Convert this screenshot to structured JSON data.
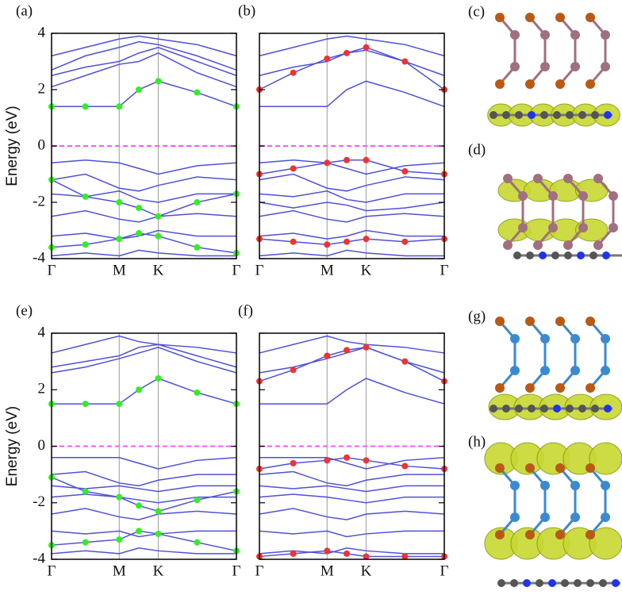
{
  "chart_data": [
    {
      "type": "line",
      "label": "(a)",
      "y_label": "Energy (eV)",
      "show_ytick_labels": true,
      "x": [
        0,
        0.5,
        1,
        1.29,
        1.577,
        2.15,
        2.732
      ],
      "xlim": [
        0,
        2.732
      ],
      "xticks": [
        {
          "value": 0,
          "label": "Γ"
        },
        {
          "value": 1,
          "label": "M"
        },
        {
          "value": 1.577,
          "label": "K"
        },
        {
          "value": 2.732,
          "label": "Γ"
        }
      ],
      "ylim": [
        -4,
        4
      ],
      "yticks": [
        4,
        2,
        0,
        -2,
        -4
      ],
      "hlines": [
        {
          "value": 0,
          "color": "#ff55ff",
          "style": "dashed"
        }
      ],
      "series": [
        {
          "color": "#5050d8",
          "values": [
            2.1,
            2.5,
            2.9,
            3.0,
            3.3,
            2.6,
            2.1
          ]
        },
        {
          "color": "#5050d8",
          "values": [
            2.5,
            2.8,
            3.0,
            3.3,
            3.5,
            3.0,
            2.5
          ]
        },
        {
          "color": "#5050d8",
          "values": [
            2.7,
            3.2,
            3.5,
            3.7,
            3.6,
            3.2,
            2.7
          ]
        },
        {
          "color": "#5050d8",
          "values": [
            3.2,
            3.5,
            3.8,
            3.9,
            3.8,
            3.6,
            3.2
          ]
        },
        {
          "color": "#5050d8",
          "values": [
            -0.6,
            -0.5,
            -0.6,
            -0.8,
            -1.0,
            -0.7,
            -0.6
          ]
        },
        {
          "color": "#5050d8",
          "values": [
            -1.2,
            -1.0,
            -1.5,
            -1.6,
            -1.4,
            -1.1,
            -1.2
          ]
        },
        {
          "color": "#5050d8",
          "values": [
            -1.7,
            -1.8,
            -1.6,
            -1.9,
            -2.0,
            -1.7,
            -1.7
          ]
        },
        {
          "color": "#5050d8",
          "values": [
            -2.5,
            -2.3,
            -2.6,
            -2.7,
            -2.5,
            -2.4,
            -2.5
          ]
        },
        {
          "color": "#5050d8",
          "values": [
            -3.2,
            -3.1,
            -3.3,
            -3.2,
            -3.0,
            -3.2,
            -3.2
          ]
        },
        {
          "color": "#5050d8",
          "values": [
            -3.9,
            -3.8,
            -3.9,
            -3.7,
            -3.8,
            -3.9,
            -3.9
          ]
        },
        {
          "color": "#33ee22",
          "marker": "dots",
          "values": [
            1.4,
            1.4,
            1.4,
            2.0,
            2.3,
            1.9,
            1.4
          ]
        },
        {
          "color": "#33ee22",
          "marker": "dots",
          "values": [
            -1.2,
            -1.8,
            -2.0,
            -2.2,
            -2.5,
            -2.0,
            -1.7
          ]
        },
        {
          "color": "#33ee22",
          "marker": "dots",
          "values": [
            -3.6,
            -3.5,
            -3.3,
            -3.1,
            -3.2,
            -3.6,
            -3.8
          ]
        }
      ]
    },
    {
      "type": "line",
      "label": "(b)",
      "show_ytick_labels": false,
      "x": [
        0,
        0.5,
        1,
        1.29,
        1.577,
        2.15,
        2.732
      ],
      "xlim": [
        0,
        2.732
      ],
      "xticks": [
        {
          "value": 0,
          "label": "Γ"
        },
        {
          "value": 1,
          "label": "M"
        },
        {
          "value": 1.577,
          "label": "K"
        },
        {
          "value": 2.732,
          "label": "Γ"
        }
      ],
      "ylim": [
        -4,
        4
      ],
      "yticks": [
        4,
        2,
        0,
        -2,
        -4
      ],
      "hlines": [
        {
          "value": 0,
          "color": "#ff55ff",
          "style": "dashed"
        }
      ],
      "series": [
        {
          "color": "#5050d8",
          "values": [
            1.4,
            1.4,
            1.4,
            2.0,
            2.3,
            1.9,
            1.4
          ]
        },
        {
          "color": "#5050d8",
          "values": [
            2.5,
            2.8,
            3.0,
            3.3,
            3.4,
            3.0,
            2.5
          ]
        },
        {
          "color": "#5050d8",
          "values": [
            3.2,
            3.5,
            3.8,
            3.9,
            3.8,
            3.6,
            3.2
          ]
        },
        {
          "color": "#5050d8",
          "values": [
            -0.6,
            -0.5,
            -0.6,
            -0.8,
            -1.0,
            -0.7,
            -0.6
          ]
        },
        {
          "color": "#5050d8",
          "values": [
            -1.2,
            -1.0,
            -1.5,
            -1.6,
            -1.4,
            -1.1,
            -1.2
          ]
        },
        {
          "color": "#5050d8",
          "values": [
            -1.7,
            -1.8,
            -1.6,
            -1.9,
            -2.0,
            -1.7,
            -1.7
          ]
        },
        {
          "color": "#5050d8",
          "values": [
            -2.0,
            -2.2,
            -2.0,
            -2.1,
            -2.3,
            -2.2,
            -2.0
          ]
        },
        {
          "color": "#5050d8",
          "values": [
            -2.5,
            -2.3,
            -2.6,
            -2.7,
            -2.5,
            -2.4,
            -2.5
          ]
        },
        {
          "color": "#5050d8",
          "values": [
            -3.2,
            -3.1,
            -3.3,
            -3.2,
            -3.0,
            -3.2,
            -3.2
          ]
        },
        {
          "color": "#5050d8",
          "values": [
            -3.9,
            -3.8,
            -3.9,
            -3.7,
            -3.8,
            -3.9,
            -3.9
          ]
        },
        {
          "color": "#ee3333",
          "marker": "dots",
          "values": [
            2.0,
            2.6,
            3.1,
            3.3,
            3.5,
            3.0,
            2.0
          ]
        },
        {
          "color": "#ee3333",
          "marker": "dots",
          "values": [
            -1.0,
            -0.8,
            -0.6,
            -0.5,
            -0.5,
            -0.9,
            -1.0
          ]
        },
        {
          "color": "#ee3333",
          "marker": "dots",
          "values": [
            -3.3,
            -3.4,
            -3.5,
            -3.4,
            -3.3,
            -3.4,
            -3.3
          ]
        }
      ]
    },
    {
      "type": "line",
      "label": "(e)",
      "y_label": "Energy (eV)",
      "show_ytick_labels": true,
      "x": [
        0,
        0.5,
        1,
        1.29,
        1.577,
        2.15,
        2.732
      ],
      "xlim": [
        0,
        2.732
      ],
      "xticks": [
        {
          "value": 0,
          "label": "Γ"
        },
        {
          "value": 1,
          "label": "M"
        },
        {
          "value": 1.577,
          "label": "K"
        },
        {
          "value": 2.732,
          "label": "Γ"
        }
      ],
      "ylim": [
        -4,
        4
      ],
      "yticks": [
        4,
        2,
        0,
        -2,
        -4
      ],
      "hlines": [
        {
          "value": 0,
          "color": "#ff55ff",
          "style": "dashed"
        }
      ],
      "series": [
        {
          "color": "#5050d8",
          "values": [
            2.6,
            2.8,
            3.1,
            3.3,
            3.5,
            3.0,
            2.6
          ]
        },
        {
          "color": "#5050d8",
          "values": [
            2.8,
            3.0,
            3.2,
            3.5,
            3.6,
            3.2,
            2.8
          ]
        },
        {
          "color": "#5050d8",
          "values": [
            3.3,
            3.6,
            3.9,
            3.7,
            3.6,
            3.5,
            3.3
          ]
        },
        {
          "color": "#5050d8",
          "values": [
            -0.4,
            -0.4,
            -0.4,
            -0.6,
            -0.8,
            -0.5,
            -0.4
          ]
        },
        {
          "color": "#5050d8",
          "values": [
            -1.0,
            -0.9,
            -1.3,
            -1.4,
            -1.2,
            -1.0,
            -1.0
          ]
        },
        {
          "color": "#5050d8",
          "values": [
            -1.4,
            -1.5,
            -1.4,
            -1.5,
            -1.6,
            -1.4,
            -1.4
          ]
        },
        {
          "color": "#5050d8",
          "values": [
            -1.8,
            -1.7,
            -1.8,
            -1.9,
            -2.0,
            -1.8,
            -1.8
          ]
        },
        {
          "color": "#5050d8",
          "values": [
            -2.4,
            -2.2,
            -2.5,
            -2.6,
            -2.4,
            -2.3,
            -2.4
          ]
        },
        {
          "color": "#5050d8",
          "values": [
            -3.0,
            -3.1,
            -3.0,
            -3.2,
            -3.1,
            -3.0,
            -3.0
          ]
        },
        {
          "color": "#5050d8",
          "values": [
            -3.8,
            -3.7,
            -3.8,
            -3.6,
            -3.7,
            -3.8,
            -3.8
          ]
        },
        {
          "color": "#33ee22",
          "marker": "dots",
          "values": [
            1.5,
            1.5,
            1.5,
            2.0,
            2.4,
            1.9,
            1.5
          ]
        },
        {
          "color": "#33ee22",
          "marker": "dots",
          "values": [
            -1.1,
            -1.6,
            -1.8,
            -2.1,
            -2.3,
            -1.9,
            -1.6
          ]
        },
        {
          "color": "#33ee22",
          "marker": "dots",
          "values": [
            -3.5,
            -3.4,
            -3.3,
            -3.0,
            -3.1,
            -3.4,
            -3.7
          ]
        }
      ]
    },
    {
      "type": "line",
      "label": "(f)",
      "show_ytick_labels": false,
      "x": [
        0,
        0.5,
        1,
        1.29,
        1.577,
        2.15,
        2.732
      ],
      "xlim": [
        0,
        2.732
      ],
      "xticks": [
        {
          "value": 0,
          "label": "Γ"
        },
        {
          "value": 1,
          "label": "M"
        },
        {
          "value": 1.577,
          "label": "K"
        },
        {
          "value": 2.732,
          "label": "Γ"
        }
      ],
      "ylim": [
        -4,
        4
      ],
      "yticks": [
        4,
        2,
        0,
        -2,
        -4
      ],
      "hlines": [
        {
          "value": 0,
          "color": "#ff55ff",
          "style": "dashed"
        }
      ],
      "series": [
        {
          "color": "#5050d8",
          "values": [
            1.5,
            1.5,
            1.5,
            2.0,
            2.4,
            1.9,
            1.5
          ]
        },
        {
          "color": "#5050d8",
          "values": [
            2.6,
            2.8,
            3.1,
            3.3,
            3.5,
            3.0,
            2.6
          ]
        },
        {
          "color": "#5050d8",
          "values": [
            3.3,
            3.6,
            3.9,
            3.7,
            3.6,
            3.5,
            3.3
          ]
        },
        {
          "color": "#5050d8",
          "values": [
            -0.4,
            -0.4,
            -0.4,
            -0.6,
            -0.8,
            -0.5,
            -0.4
          ]
        },
        {
          "color": "#5050d8",
          "values": [
            -1.0,
            -0.9,
            -1.3,
            -1.4,
            -1.2,
            -1.0,
            -1.0
          ]
        },
        {
          "color": "#5050d8",
          "values": [
            -1.4,
            -1.5,
            -1.4,
            -1.5,
            -1.6,
            -1.4,
            -1.4
          ]
        },
        {
          "color": "#5050d8",
          "values": [
            -1.8,
            -1.7,
            -1.8,
            -1.9,
            -2.0,
            -1.8,
            -1.8
          ]
        },
        {
          "color": "#5050d8",
          "values": [
            -2.4,
            -2.2,
            -2.5,
            -2.6,
            -2.4,
            -2.3,
            -2.4
          ]
        },
        {
          "color": "#5050d8",
          "values": [
            -3.0,
            -3.1,
            -3.0,
            -3.2,
            -3.1,
            -3.0,
            -3.0
          ]
        },
        {
          "color": "#5050d8",
          "values": [
            -3.8,
            -3.7,
            -3.8,
            -3.6,
            -3.7,
            -3.8,
            -3.8
          ]
        },
        {
          "color": "#ee3333",
          "marker": "dots",
          "values": [
            2.3,
            2.7,
            3.2,
            3.4,
            3.5,
            3.0,
            2.3
          ]
        },
        {
          "color": "#ee3333",
          "marker": "dots",
          "values": [
            -0.8,
            -0.6,
            -0.5,
            -0.4,
            -0.5,
            -0.7,
            -0.8
          ]
        },
        {
          "color": "#ee3333",
          "marker": "dots",
          "values": [
            -3.9,
            -3.8,
            -3.7,
            -3.8,
            -3.9,
            -3.9,
            -3.9
          ]
        }
      ]
    }
  ],
  "structure_labels": [
    "(c)",
    "(d)",
    "(g)",
    "(h)"
  ]
}
